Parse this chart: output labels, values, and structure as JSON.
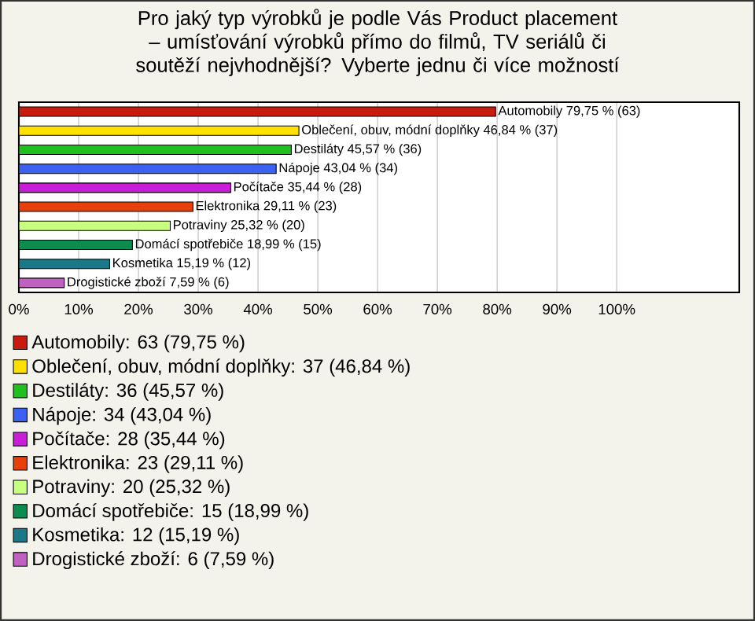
{
  "chart_data": {
    "type": "bar",
    "orientation": "horizontal",
    "title": "Pro jaký typ výrobků je podle Vás Product placement – umísťování výrobků přímo do filmů, TV seriálů či soutěží nejvhodnější? Vyberte jednu či více možností",
    "categories": [
      null,
      null,
      null,
      null,
      null,
      null,
      null,
      null,
      null,
      null
    ],
    "series": [
      {
        "name": "Automobily: 63 (79,75 %)",
        "color": "#c81a0e",
        "values": [
          79.75,
          null,
          null,
          null,
          null,
          null,
          null,
          null,
          null,
          null
        ],
        "value_labels": [
          "Automobily 79,75 % (63)",
          null,
          null,
          null,
          null,
          null,
          null,
          null,
          null,
          null
        ]
      },
      {
        "name": "Oblečení, obuv, módní doplňky: 37 (46,84 %)",
        "color": "#ffe000",
        "values": [
          null,
          46.84,
          null,
          null,
          null,
          null,
          null,
          null,
          null,
          null
        ],
        "value_labels": [
          null,
          "Oblečení, obuv, módní doplňky 46,84 % (37)",
          null,
          null,
          null,
          null,
          null,
          null,
          null,
          null
        ]
      },
      {
        "name": "Destiláty: 36 (45,57 %)",
        "color": "#1ec01e",
        "values": [
          null,
          null,
          45.57,
          null,
          null,
          null,
          null,
          null,
          null,
          null
        ],
        "value_labels": [
          null,
          null,
          "Destiláty 45,57 % (36)",
          null,
          null,
          null,
          null,
          null,
          null,
          null
        ]
      },
      {
        "name": "Nápoje: 34 (43,04 %)",
        "color": "#3c60f0",
        "values": [
          null,
          null,
          null,
          43.04,
          null,
          null,
          null,
          null,
          null,
          null
        ],
        "value_labels": [
          null,
          null,
          null,
          "Nápoje 43,04 % (34)",
          null,
          null,
          null,
          null,
          null,
          null
        ]
      },
      {
        "name": "Počítače: 28 (35,44 %)",
        "color": "#c81ed8",
        "values": [
          null,
          null,
          null,
          null,
          35.44,
          null,
          null,
          null,
          null,
          null
        ],
        "value_labels": [
          null,
          null,
          null,
          null,
          "Počítače 35,44 % (28)",
          null,
          null,
          null,
          null,
          null
        ]
      },
      {
        "name": "Elektronika: 23 (29,11 %)",
        "color": "#e8400a",
        "values": [
          null,
          null,
          null,
          null,
          null,
          29.11,
          null,
          null,
          null,
          null
        ],
        "value_labels": [
          null,
          null,
          null,
          null,
          null,
          "Elektronika 29,11 % (23)",
          null,
          null,
          null,
          null
        ]
      },
      {
        "name": "Potraviny: 20 (25,32 %)",
        "color": "#c8ff80",
        "values": [
          null,
          null,
          null,
          null,
          null,
          null,
          25.32,
          null,
          null,
          null
        ],
        "value_labels": [
          null,
          null,
          null,
          null,
          null,
          null,
          "Potraviny 25,32 % (20)",
          null,
          null,
          null
        ]
      },
      {
        "name": "Domácí spotřebiče: 15 (18,99 %)",
        "color": "#0e8c50",
        "values": [
          null,
          null,
          null,
          null,
          null,
          null,
          null,
          18.99,
          null,
          null
        ],
        "value_labels": [
          null,
          null,
          null,
          null,
          null,
          null,
          null,
          "Domácí spotřebiče 18,99 % (15)",
          null,
          null
        ]
      },
      {
        "name": "Kosmetika: 12 (15,19 %)",
        "color": "#1a7888",
        "values": [
          null,
          null,
          null,
          null,
          null,
          null,
          null,
          null,
          15.19,
          null
        ],
        "value_labels": [
          null,
          null,
          null,
          null,
          null,
          null,
          null,
          null,
          "Kosmetika 15,19 % (12)",
          null
        ]
      },
      {
        "name": "Drogistické zboží: 6 (7,59 %)",
        "color": "#c060c0",
        "values": [
          null,
          null,
          null,
          null,
          null,
          null,
          null,
          null,
          null,
          7.59
        ],
        "value_labels": [
          null,
          null,
          null,
          null,
          null,
          null,
          null,
          null,
          null,
          "Drogistické zboží 7,59 % (6)"
        ]
      }
    ],
    "xlim": [
      0,
      120.5
    ],
    "xticks": [
      {
        "value": 0,
        "label": "0%"
      },
      {
        "value": 10,
        "label": "10%"
      },
      {
        "value": 20,
        "label": "20%"
      },
      {
        "value": 30,
        "label": "30%"
      },
      {
        "value": 40,
        "label": "40%"
      },
      {
        "value": 50,
        "label": "50%"
      },
      {
        "value": 60,
        "label": "60%"
      },
      {
        "value": 70,
        "label": "70%"
      },
      {
        "value": 80,
        "label": "80%"
      },
      {
        "value": 90,
        "label": "90%"
      },
      {
        "value": 100,
        "label": "100%"
      }
    ],
    "grid": "x",
    "legend": "bottom"
  }
}
